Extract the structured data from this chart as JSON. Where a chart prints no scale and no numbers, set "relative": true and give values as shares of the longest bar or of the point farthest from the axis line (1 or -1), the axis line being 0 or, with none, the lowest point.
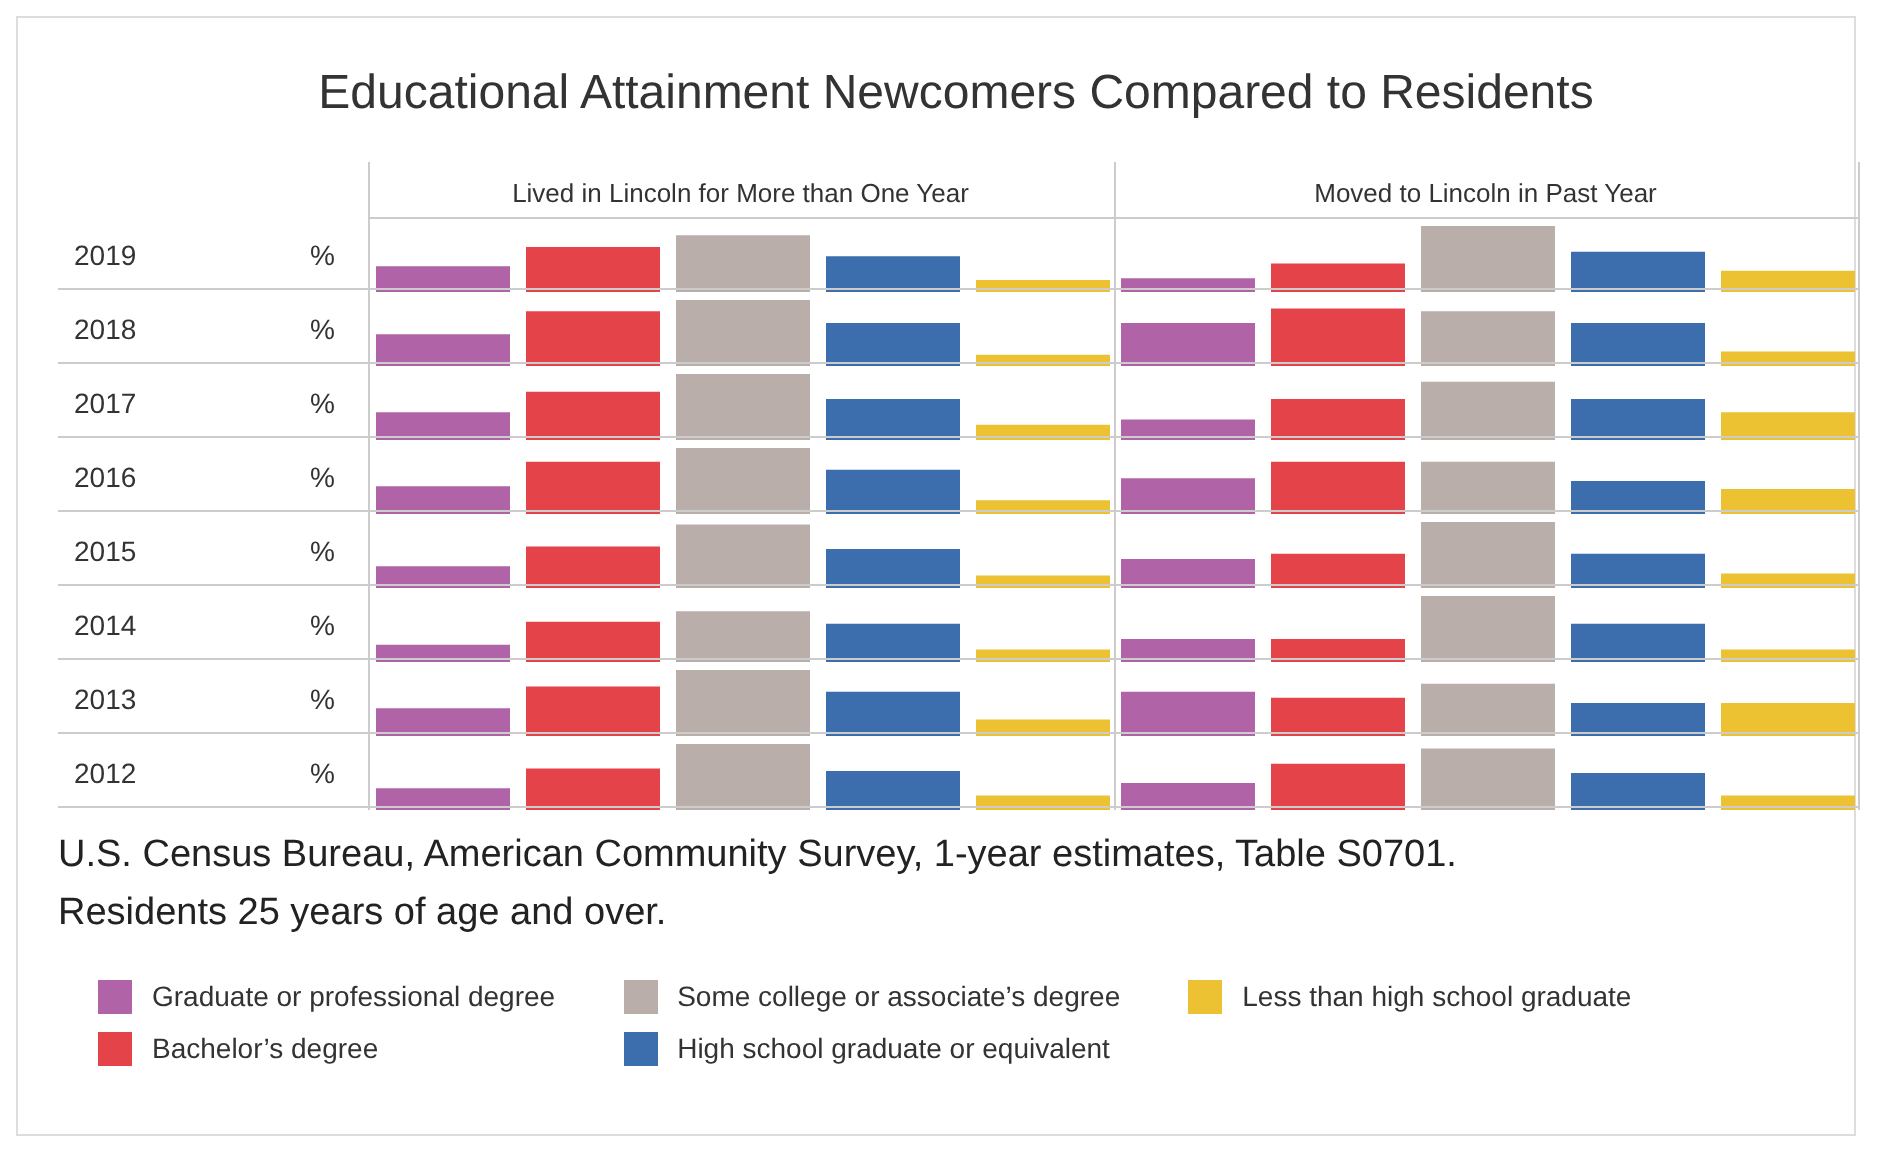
{
  "chart_data": [
    {
      "type": "other",
      "title": "Educational Attainment Newcomers Compared to Residents"
    },
    {
      "type": "bar",
      "title": "2019",
      "ylabel": "%",
      "relative": true,
      "tick_labels": "x",
      "categories": [
        "Lived in Lincoln for More than One Year",
        "Moved to Lincoln in Past Year"
      ],
      "series": [
        {
          "color": "#b163a8",
          "values": [
            0.39,
            0.21
          ]
        },
        {
          "color": "#e5434a",
          "values": [
            0.68,
            0.43
          ]
        },
        {
          "color": "#b9aeaa",
          "values": [
            0.86,
            1
          ]
        },
        {
          "color": "#3c6dac",
          "values": [
            0.54,
            0.61
          ]
        },
        {
          "color": "#ecc132",
          "values": [
            0.18,
            0.32
          ]
        }
      ]
    },
    {
      "type": "bar",
      "title": "2018",
      "ylabel": "%",
      "relative": true,
      "tick_labels": false,
      "categories": [
        null,
        null
      ],
      "series": [
        {
          "color": "#b163a8",
          "values": [
            0.48,
            0.65
          ]
        },
        {
          "color": "#e5434a",
          "values": [
            0.83,
            0.87
          ]
        },
        {
          "color": "#b9aeaa",
          "values": [
            1,
            0.83
          ]
        },
        {
          "color": "#3c6dac",
          "values": [
            0.65,
            0.65
          ]
        },
        {
          "color": "#ecc132",
          "values": [
            0.17,
            0.22
          ]
        }
      ]
    },
    {
      "type": "bar",
      "title": "2017",
      "ylabel": "%",
      "relative": true,
      "tick_labels": false,
      "categories": [
        null,
        null
      ],
      "series": [
        {
          "color": "#b163a8",
          "values": [
            0.42,
            0.31
          ]
        },
        {
          "color": "#e5434a",
          "values": [
            0.73,
            0.62
          ]
        },
        {
          "color": "#b9aeaa",
          "values": [
            1,
            0.88
          ]
        },
        {
          "color": "#3c6dac",
          "values": [
            0.62,
            0.62
          ]
        },
        {
          "color": "#ecc132",
          "values": [
            0.23,
            0.42
          ]
        }
      ]
    },
    {
      "type": "bar",
      "title": "2016",
      "ylabel": "%",
      "relative": true,
      "tick_labels": false,
      "categories": [
        null,
        null
      ],
      "series": [
        {
          "color": "#b163a8",
          "values": [
            0.42,
            0.54
          ]
        },
        {
          "color": "#e5434a",
          "values": [
            0.79,
            0.79
          ]
        },
        {
          "color": "#b9aeaa",
          "values": [
            1,
            0.79
          ]
        },
        {
          "color": "#3c6dac",
          "values": [
            0.67,
            0.5
          ]
        },
        {
          "color": "#ecc132",
          "values": [
            0.21,
            0.38
          ]
        }
      ]
    },
    {
      "type": "bar",
      "title": "2015",
      "ylabel": "%",
      "relative": true,
      "tick_labels": false,
      "categories": [
        null,
        null
      ],
      "series": [
        {
          "color": "#b163a8",
          "values": [
            0.33,
            0.44
          ]
        },
        {
          "color": "#e5434a",
          "values": [
            0.63,
            0.52
          ]
        },
        {
          "color": "#b9aeaa",
          "values": [
            0.96,
            1
          ]
        },
        {
          "color": "#3c6dac",
          "values": [
            0.59,
            0.52
          ]
        },
        {
          "color": "#ecc132",
          "values": [
            0.19,
            0.22
          ]
        }
      ]
    },
    {
      "type": "bar",
      "title": "2014",
      "ylabel": "%",
      "relative": true,
      "tick_labels": false,
      "categories": [
        null,
        null
      ],
      "series": [
        {
          "color": "#b163a8",
          "values": [
            0.26,
            0.35
          ]
        },
        {
          "color": "#e5434a",
          "values": [
            0.61,
            0.35
          ]
        },
        {
          "color": "#b9aeaa",
          "values": [
            0.77,
            1
          ]
        },
        {
          "color": "#3c6dac",
          "values": [
            0.58,
            0.58
          ]
        },
        {
          "color": "#ecc132",
          "values": [
            0.19,
            0.19
          ]
        }
      ]
    },
    {
      "type": "bar",
      "title": "2013",
      "ylabel": "%",
      "relative": true,
      "tick_labels": false,
      "categories": [
        null,
        null
      ],
      "series": [
        {
          "color": "#b163a8",
          "values": [
            0.42,
            0.67
          ]
        },
        {
          "color": "#e5434a",
          "values": [
            0.75,
            0.58
          ]
        },
        {
          "color": "#b9aeaa",
          "values": [
            1,
            0.79
          ]
        },
        {
          "color": "#3c6dac",
          "values": [
            0.67,
            0.5
          ]
        },
        {
          "color": "#ecc132",
          "values": [
            0.25,
            0.5
          ]
        }
      ]
    },
    {
      "type": "bar",
      "title": "2012",
      "ylabel": "%",
      "relative": true,
      "tick_labels": false,
      "legend": "bottom",
      "categories": [
        null,
        null
      ],
      "annotations": [
        "U.S. Census Bureau, American Community Survey, 1-year estimates, Table S0701.",
        "Residents 25 years of age and over."
      ],
      "series": [
        {
          "name": "Graduate or professional degree",
          "color": "#b163a8",
          "values": [
            0.33,
            0.41
          ]
        },
        {
          "name": "Bachelor’s degree",
          "color": "#e5434a",
          "values": [
            0.63,
            0.7
          ]
        },
        {
          "name": "Some college or associate’s degree",
          "color": "#b9aeaa",
          "values": [
            1,
            0.93
          ]
        },
        {
          "name": "High school graduate or equivalent",
          "color": "#3c6dac",
          "values": [
            0.59,
            0.56
          ]
        },
        {
          "name": "Less than high school graduate",
          "color": "#ecc132",
          "values": [
            0.22,
            0.22
          ]
        }
      ]
    }
  ]
}
